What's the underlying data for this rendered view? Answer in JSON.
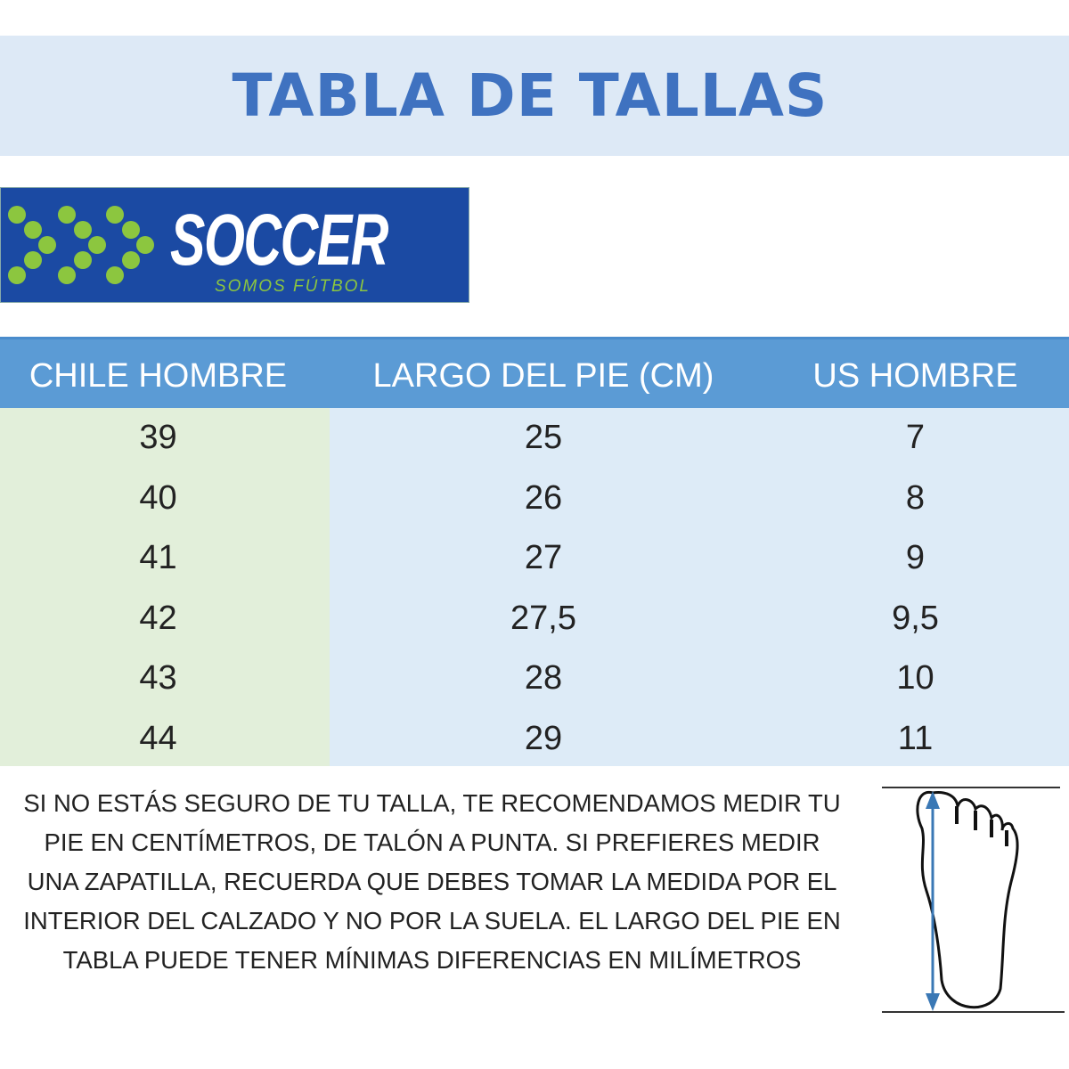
{
  "title": "TABLA DE TALLAS",
  "logo": {
    "word": "SOCCER",
    "tagline": "SOMOS FÚTBOL",
    "bg": "#1b4aa3",
    "dot_color": "#8cc63f"
  },
  "table": {
    "headers": [
      "CHILE HOMBRE",
      "LARGO DEL PIE (CM)",
      "US HOMBRE"
    ],
    "rows": [
      [
        "39",
        "25",
        "7"
      ],
      [
        "40",
        "26",
        "8"
      ],
      [
        "41",
        "27",
        "9"
      ],
      [
        "42",
        "27,5",
        "9,5"
      ],
      [
        "43",
        "28",
        "10"
      ],
      [
        "44",
        "29",
        "11"
      ]
    ],
    "colors": {
      "header": "#5b9bd5",
      "col1": "#e2efda",
      "other": "#ddebf7"
    }
  },
  "note": {
    "lines": [
      "SI NO ESTÁS SEGURO DE TU TALLA, TE RECOMENDAMOS MEDIR TU",
      "PIE EN CENTÍMETROS, DE TALÓN A PUNTA. SI PREFIERES MEDIR",
      "UNA ZAPATILLA, RECUERDA QUE DEBES TOMAR LA MEDIDA POR EL",
      "INTERIOR DEL CALZADO Y NO POR LA SUELA. EL LARGO DEL PIE EN",
      "TABLA PUEDE TENER MÍNIMAS DIFERENCIAS EN MILÍMETROS"
    ]
  },
  "illustration": {
    "icon": "foot-measure-icon",
    "arrow_color": "#3a78b5"
  }
}
